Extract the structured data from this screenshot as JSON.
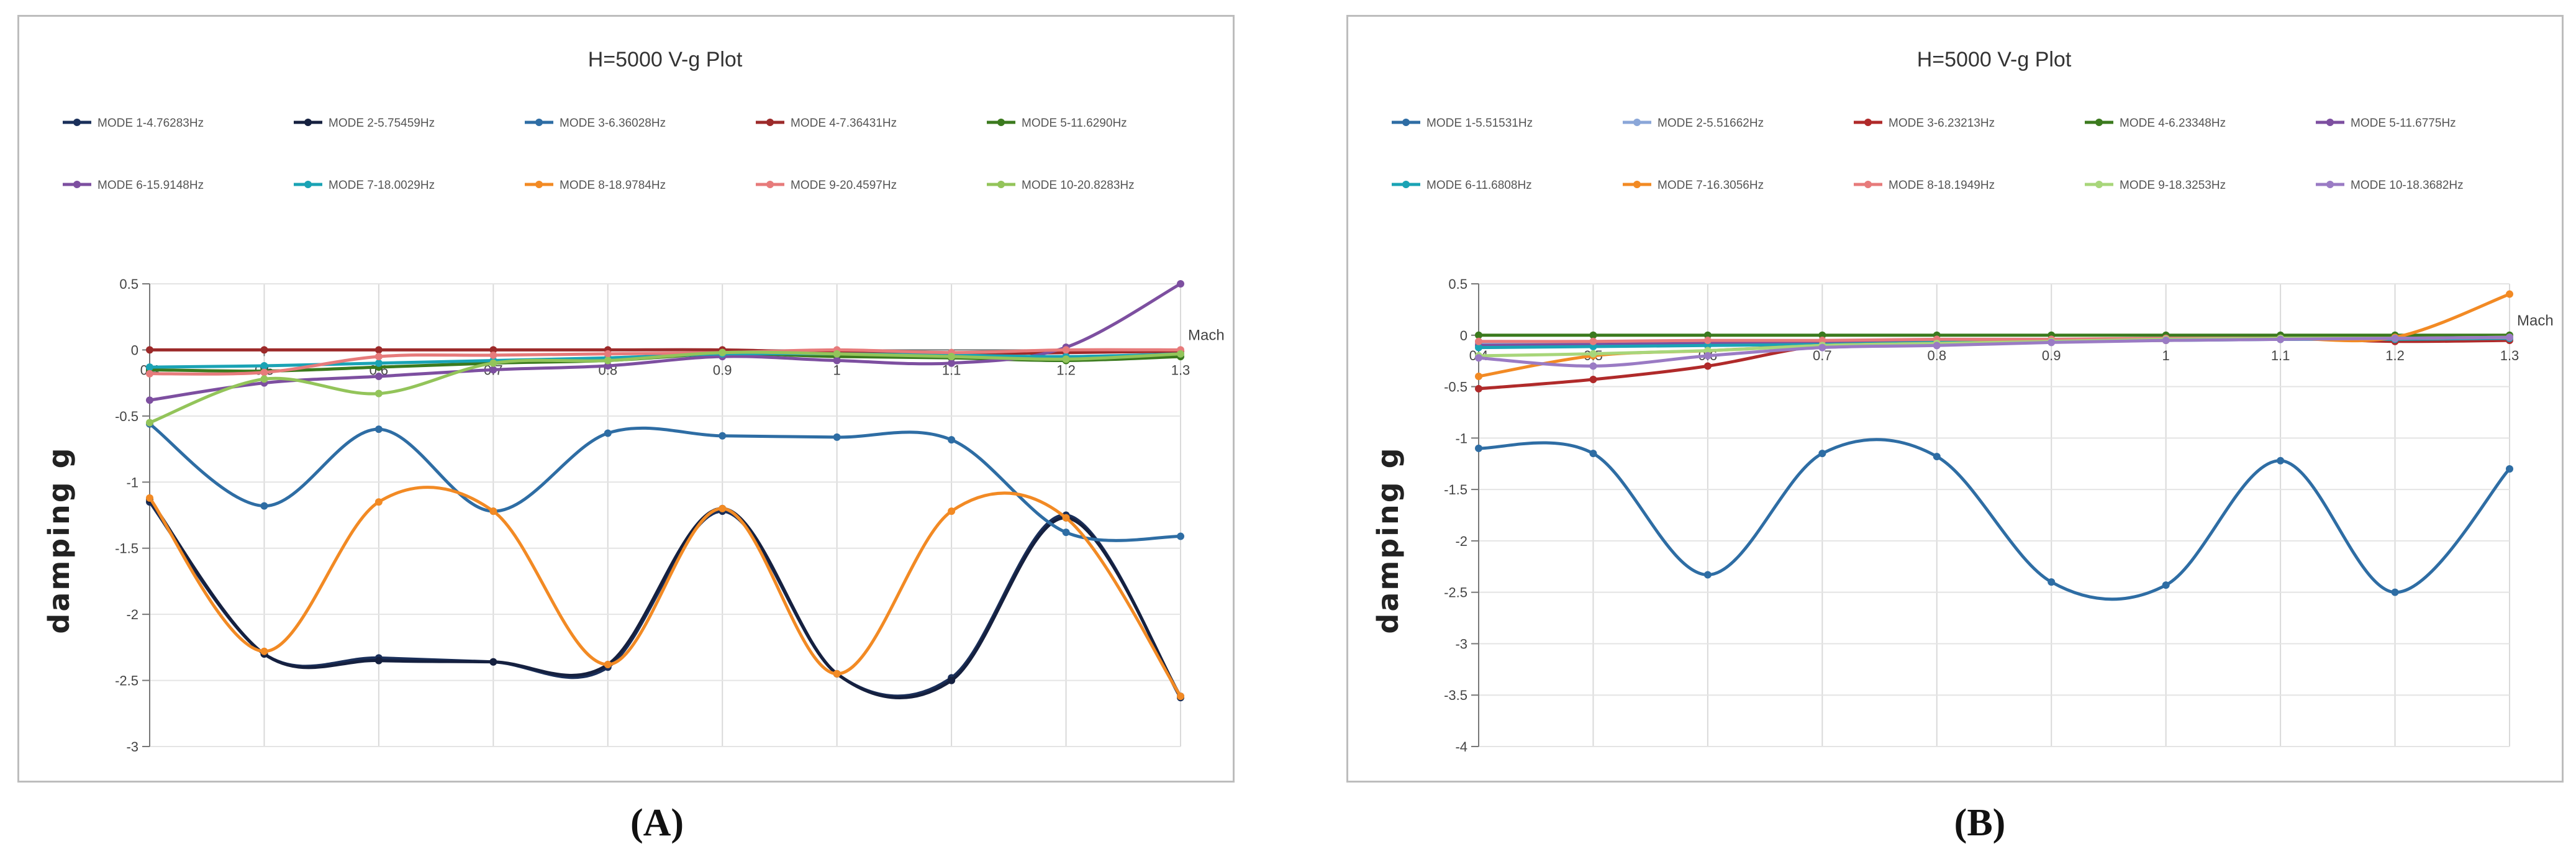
{
  "chart_data": [
    {
      "id": "A",
      "type": "line",
      "title": "H=5000 V-g Plot",
      "xlabel": "Mach",
      "ylabel": "damping g",
      "x": [
        0.4,
        0.5,
        0.6,
        0.7,
        0.8,
        0.9,
        1,
        1.1,
        1.2,
        1.3
      ],
      "xticks": [
        "0.4",
        "0.5",
        "0.6",
        "0.7",
        "0.8",
        "0.9",
        "1",
        "1.1",
        "1.2",
        "1.3"
      ],
      "ylim": [
        -3,
        0.5
      ],
      "yticks": [
        "0.5",
        "0",
        "-0.5",
        "-1",
        "-1.5",
        "-2",
        "-2.5",
        "-3"
      ],
      "grid": true,
      "legend_position": "top",
      "series": [
        {
          "name": "MODE 1-4.76283Hz",
          "color": "#1a2f5a",
          "values": [
            -1.15,
            -2.3,
            -2.33,
            -2.36,
            -2.4,
            -1.22,
            -2.45,
            -2.48,
            -1.25,
            -2.63
          ]
        },
        {
          "name": "MODE 2-5.75459Hz",
          "color": "#15203f",
          "values": [
            -1.13,
            -2.3,
            -2.35,
            -2.36,
            -2.38,
            -1.2,
            -2.45,
            -2.5,
            -1.27,
            -2.62
          ]
        },
        {
          "name": "MODE 3-6.36028Hz",
          "color": "#2e6da4",
          "values": [
            -0.56,
            -1.18,
            -0.6,
            -1.22,
            -0.63,
            -0.65,
            -0.66,
            -0.68,
            -1.38,
            -1.41
          ]
        },
        {
          "name": "MODE 4-7.36431Hz",
          "color": "#9c2a2a",
          "values": [
            0,
            0,
            0,
            0,
            0,
            0,
            -0.02,
            -0.03,
            -0.02,
            -0.01
          ]
        },
        {
          "name": "MODE 5-11.6290Hz",
          "color": "#3b7a1e",
          "values": [
            -0.15,
            -0.16,
            -0.13,
            -0.1,
            -0.08,
            -0.03,
            -0.05,
            -0.06,
            -0.08,
            -0.05
          ]
        },
        {
          "name": "MODE 6-15.9148Hz",
          "color": "#7d4fa0",
          "values": [
            -0.38,
            -0.25,
            -0.2,
            -0.15,
            -0.12,
            -0.05,
            -0.08,
            -0.1,
            0.02,
            0.5
          ]
        },
        {
          "name": "MODE 7-18.0029Hz",
          "color": "#1aa3b5",
          "values": [
            -0.13,
            -0.12,
            -0.1,
            -0.08,
            -0.06,
            -0.03,
            -0.03,
            -0.04,
            -0.05,
            -0.03
          ]
        },
        {
          "name": "MODE 8-18.9784Hz",
          "color": "#f28a24",
          "values": [
            -1.12,
            -2.28,
            -1.15,
            -1.22,
            -2.38,
            -1.2,
            -2.45,
            -1.22,
            -1.27,
            -2.62
          ]
        },
        {
          "name": "MODE 9-20.4597Hz",
          "color": "#e77b7b",
          "values": [
            -0.18,
            -0.17,
            -0.05,
            -0.04,
            -0.03,
            -0.02,
            0,
            -0.02,
            0,
            0
          ]
        },
        {
          "name": "MODE 10-20.8283Hz",
          "color": "#93c45a",
          "values": [
            -0.55,
            -0.22,
            -0.33,
            -0.1,
            -0.08,
            -0.02,
            -0.03,
            -0.05,
            -0.07,
            -0.03
          ]
        }
      ]
    },
    {
      "id": "B",
      "type": "line",
      "title": "H=5000 V-g Plot",
      "xlabel": "Mach",
      "ylabel": "damping g",
      "x": [
        0.4,
        0.5,
        0.6,
        0.7,
        0.8,
        0.9,
        1,
        1.1,
        1.2,
        1.3
      ],
      "xticks": [
        "0.4",
        "0.5",
        "0.6",
        "0.7",
        "0.8",
        "0.9",
        "1",
        "1.1",
        "1.2",
        "1.3"
      ],
      "ylim": [
        -4,
        0.5
      ],
      "yticks": [
        "0.5",
        "0",
        "-0.5",
        "-1",
        "-1.5",
        "-2",
        "-2.5",
        "-3",
        "-3.5",
        "-4"
      ],
      "grid": true,
      "legend_position": "top",
      "series": [
        {
          "name": "MODE 1-5.51531Hz",
          "color": "#2e6da4",
          "values": [
            -1.1,
            -1.15,
            -2.33,
            -1.15,
            -1.18,
            -2.4,
            -2.43,
            -1.22,
            -2.5,
            -1.3
          ]
        },
        {
          "name": "MODE 2-5.51662Hz",
          "color": "#8aa6d8",
          "values": [
            -0.08,
            -0.08,
            -0.08,
            -0.07,
            -0.06,
            -0.05,
            -0.04,
            -0.03,
            -0.03,
            -0.02
          ]
        },
        {
          "name": "MODE 3-6.23213Hz",
          "color": "#b02a2a",
          "values": [
            -0.52,
            -0.43,
            -0.3,
            -0.1,
            -0.08,
            -0.05,
            -0.04,
            -0.03,
            -0.06,
            -0.05
          ]
        },
        {
          "name": "MODE 4-6.23348Hz",
          "color": "#3b7a1e",
          "values": [
            0,
            0,
            0,
            0,
            0,
            0,
            0,
            0,
            0,
            0
          ]
        },
        {
          "name": "MODE 5-11.6775Hz",
          "color": "#7d4fa0",
          "values": [
            -0.1,
            -0.09,
            -0.08,
            -0.07,
            -0.06,
            -0.05,
            -0.04,
            -0.04,
            -0.03,
            -0.03
          ]
        },
        {
          "name": "MODE 6-11.6808Hz",
          "color": "#1aa3b5",
          "values": [
            -0.12,
            -0.11,
            -0.1,
            -0.09,
            -0.07,
            -0.06,
            -0.05,
            -0.04,
            -0.04,
            -0.03
          ]
        },
        {
          "name": "MODE 7-16.3056Hz",
          "color": "#f28a24",
          "values": [
            -0.4,
            -0.2,
            -0.15,
            -0.1,
            -0.08,
            -0.06,
            -0.05,
            -0.03,
            -0.02,
            0.4
          ]
        },
        {
          "name": "MODE 8-18.1949Hz",
          "color": "#e77b7b",
          "values": [
            -0.06,
            -0.06,
            -0.05,
            -0.05,
            -0.04,
            -0.04,
            -0.03,
            -0.03,
            -0.03,
            -0.02
          ]
        },
        {
          "name": "MODE 9-18.3253Hz",
          "color": "#a8d67a",
          "values": [
            -0.2,
            -0.18,
            -0.15,
            -0.1,
            -0.08,
            -0.06,
            -0.04,
            -0.03,
            -0.03,
            -0.02
          ]
        },
        {
          "name": "MODE 10-18.3682Hz",
          "color": "#9a7bc4",
          "values": [
            -0.22,
            -0.3,
            -0.2,
            -0.12,
            -0.1,
            -0.07,
            -0.05,
            -0.04,
            -0.03,
            -0.02
          ]
        }
      ]
    }
  ],
  "captions": [
    "(A)",
    "(B)"
  ]
}
